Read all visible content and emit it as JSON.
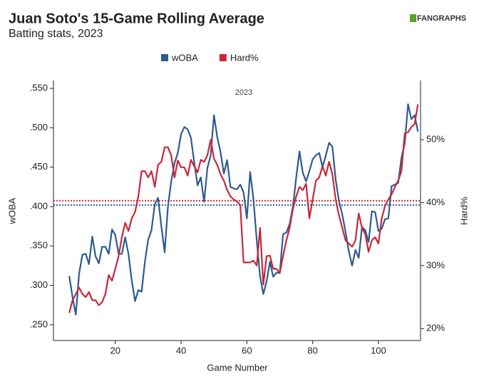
{
  "chart_data": {
    "type": "line",
    "title": "Juan Soto's 15-Game Rolling Average",
    "subtitle": "Batting stats, 2023",
    "logo": "FANGRAPHS",
    "annotation": "2023",
    "xlabel": "Game Number",
    "ylabel": "wOBA",
    "y2label": "Hard%",
    "x": [
      6,
      7,
      8,
      9,
      10,
      11,
      12,
      13,
      14,
      15,
      16,
      17,
      18,
      19,
      20,
      21,
      22,
      23,
      24,
      25,
      26,
      27,
      28,
      29,
      30,
      31,
      32,
      33,
      34,
      35,
      36,
      37,
      38,
      39,
      40,
      41,
      42,
      43,
      44,
      45,
      46,
      47,
      48,
      49,
      50,
      51,
      52,
      53,
      54,
      55,
      56,
      57,
      58,
      59,
      60,
      61,
      62,
      63,
      64,
      65,
      66,
      67,
      68,
      69,
      70,
      71,
      72,
      73,
      74,
      75,
      76,
      77,
      78,
      79,
      80,
      81,
      82,
      83,
      84,
      85,
      86,
      87,
      88,
      89,
      90,
      91,
      92,
      93,
      94,
      95,
      96,
      97,
      98,
      99,
      100,
      101,
      102,
      103,
      104,
      105,
      106,
      107,
      108,
      109,
      110,
      111,
      112
    ],
    "series": [
      {
        "name": "wOBA",
        "color": "#2e5b8f",
        "axis": "y",
        "values": [
          0.312,
          0.285,
          0.263,
          0.315,
          0.339,
          0.34,
          0.327,
          0.362,
          0.337,
          0.328,
          0.349,
          0.349,
          0.34,
          0.371,
          0.364,
          0.34,
          0.34,
          0.361,
          0.34,
          0.306,
          0.28,
          0.294,
          0.292,
          0.33,
          0.358,
          0.37,
          0.403,
          0.411,
          0.375,
          0.342,
          0.4,
          0.432,
          0.455,
          0.468,
          0.492,
          0.501,
          0.498,
          0.487,
          0.456,
          0.427,
          0.437,
          0.406,
          0.449,
          0.465,
          0.516,
          0.488,
          0.469,
          0.442,
          0.459,
          0.425,
          0.423,
          0.422,
          0.428,
          0.418,
          0.385,
          0.444,
          0.409,
          0.357,
          0.312,
          0.289,
          0.305,
          0.33,
          0.311,
          0.316,
          0.316,
          0.365,
          0.367,
          0.378,
          0.4,
          0.437,
          0.47,
          0.443,
          0.432,
          0.445,
          0.46,
          0.465,
          0.468,
          0.45,
          0.465,
          0.481,
          0.476,
          0.434,
          0.407,
          0.39,
          0.368,
          0.343,
          0.325,
          0.345,
          0.335,
          0.374,
          0.37,
          0.355,
          0.394,
          0.393,
          0.369,
          0.372,
          0.384,
          0.385,
          0.426,
          0.428,
          0.43,
          0.462,
          0.48,
          0.53,
          0.511,
          0.516,
          0.495
        ]
      },
      {
        "name": "Hard%",
        "color": "#c8283a",
        "axis": "y2",
        "values": [
          22.5,
          24.5,
          25.5,
          26.5,
          25.5,
          25,
          25.8,
          24.5,
          24.5,
          23.7,
          24.2,
          25.5,
          28.5,
          27.6,
          29.5,
          31.5,
          34.5,
          36.8,
          35.5,
          37.5,
          38.5,
          41,
          45,
          45,
          44,
          45,
          42.5,
          46,
          46.5,
          48.8,
          48.8,
          47.5,
          44,
          46.7,
          45.6,
          45.6,
          44.3,
          46.8,
          45.8,
          44.8,
          46.8,
          46.5,
          47.5,
          50,
          47,
          46,
          44.5,
          43.5,
          42,
          41,
          40.5,
          40.2,
          39.6,
          30.5,
          30.5,
          30.5,
          30.8,
          30,
          36,
          27,
          31.5,
          31.6,
          29.5,
          29.5,
          28.8,
          31.5,
          34,
          36,
          39,
          41,
          42.5,
          42,
          43,
          37.5,
          40.5,
          43.5,
          44,
          45.8,
          44.3,
          46.5,
          44.5,
          40.5,
          38,
          36,
          34,
          33.5,
          33,
          34,
          38.3,
          36,
          35,
          32.2,
          34,
          34.5,
          33.5,
          37.5,
          39.5,
          40.5,
          41.3,
          42.5,
          43.5,
          45,
          51,
          51.2,
          52,
          52.5,
          55.6
        ]
      }
    ],
    "reference_lines": [
      {
        "axis": "y",
        "value": 0.402,
        "color": "#2e5b8f"
      },
      {
        "axis": "y2",
        "value": 40.3,
        "color": "#c8283a"
      }
    ],
    "xlim": [
      1.2,
      112.8
    ],
    "xticks": [
      20,
      40,
      60,
      80,
      100
    ],
    "ylim": [
      0.23,
      0.56
    ],
    "yticks": [
      {
        "value": 0.25,
        "label": ".250"
      },
      {
        "value": 0.3,
        "label": ".300"
      },
      {
        "value": 0.35,
        "label": ".350"
      },
      {
        "value": 0.4,
        "label": ".400"
      },
      {
        "value": 0.45,
        "label": ".450"
      },
      {
        "value": 0.5,
        "label": ".500"
      },
      {
        "value": 0.55,
        "label": ".550"
      }
    ],
    "y2lim": [
      18.1,
      59.4
    ],
    "y2ticks": [
      {
        "value": 20,
        "label": "20%"
      },
      {
        "value": 30,
        "label": "30%"
      },
      {
        "value": 40,
        "label": "40%"
      },
      {
        "value": 50,
        "label": "50%"
      }
    ],
    "legend": "top"
  }
}
